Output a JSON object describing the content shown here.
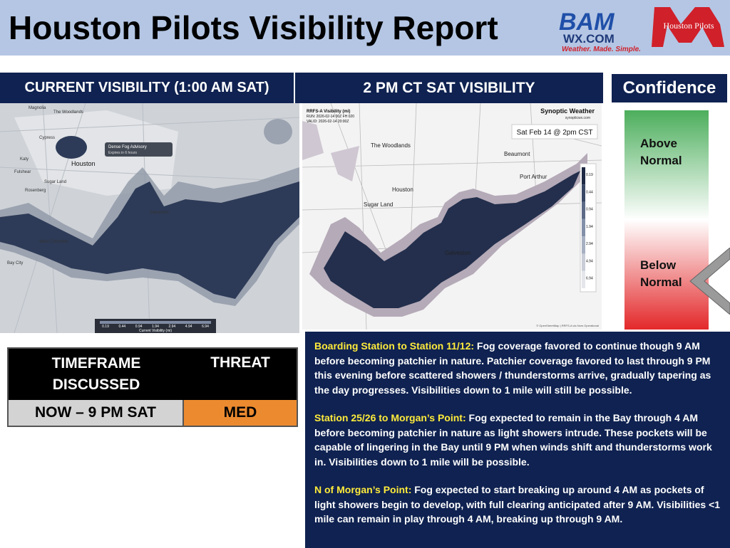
{
  "header": {
    "title": "Houston Pilots Visibility Report",
    "logos": {
      "bam": "BAM",
      "bam_site": "WX.COM",
      "bam_tagline": "Weather. Made. Simple.",
      "pilots": "Houston Pilots"
    }
  },
  "current_panel": {
    "title": "CURRENT VISIBILITY (1:00 AM SAT)",
    "map_labels": [
      "Magnolia",
      "The Woodlands",
      "Cypress",
      "Houston",
      "Katy",
      "Fulshear",
      "Sugar Land",
      "Rosenberg",
      "West Columbia",
      "Bay City",
      "Galveston"
    ],
    "advisory": [
      "Dense Fog Advisory",
      "Expires in 6 hours"
    ],
    "legend_title": "Current Visibility (mi)",
    "legend_ticks": [
      "0.19",
      "0.44",
      "0.94",
      "1.94",
      "2.94",
      "4.94",
      "6.94"
    ]
  },
  "forecast_panel": {
    "title": "2 PM CT SAT VISIBILITY",
    "model": "RRFS-A Visibility (mi)",
    "run": "RUN: 2026-02-14 00Z FH 020",
    "valid": "VALID: 2026-02-14 20:00Z",
    "brand": "Synoptic Weather",
    "brand_site": "synopticwx.com",
    "stamp": "Sat Feb 14 @ 2pm CST",
    "map_labels": [
      "The Woodlands",
      "Beaumont",
      "Port Arthur",
      "Houston",
      "Sugar Land",
      "Galveston"
    ],
    "legend_ticks": [
      "0.19",
      "0.44",
      "0.94",
      "1.94",
      "2.94",
      "4.94",
      "6.94"
    ],
    "credit": "© OpenStreetMap | RRFS-A via Nors Operational"
  },
  "confidence": {
    "title": "Confidence",
    "above": "Above Normal",
    "below": "Below Normal"
  },
  "table": {
    "headers": [
      "TIMEFRAME DISCUSSED",
      "THREAT"
    ],
    "rows": [
      [
        "NOW – 9 PM SAT",
        "MED"
      ]
    ]
  },
  "discussion": [
    {
      "heading": "Boarding Station to Station 11/12:",
      "text": " Fog coverage favored to continue though 9 AM before becoming patchier in nature. Patchier coverage favored to last through 9 PM this evening before scattered showers / thunderstorms arrive, gradually tapering as the day progresses. Visibilities down to 1 mile will still be possible."
    },
    {
      "heading": "Station 25/26 to Morgan’s Point:",
      "text": " Fog expected to remain in the Bay through 4 AM before becoming patchier in nature as light showers intrude. These pockets will be capable of lingering in the Bay until 9 PM when winds shift and thunderstorms work in. Visibilities down to 1 mile will be possible."
    },
    {
      "heading": "N of Morgan’s Point:",
      "text": " Fog expected to start breaking up around 4 AM as pockets of light showers begin to develop, with full clearing anticipated after 9 AM. Visibilities <1 mile can remain in play through 4 AM, breaking up through 9 AM."
    }
  ]
}
